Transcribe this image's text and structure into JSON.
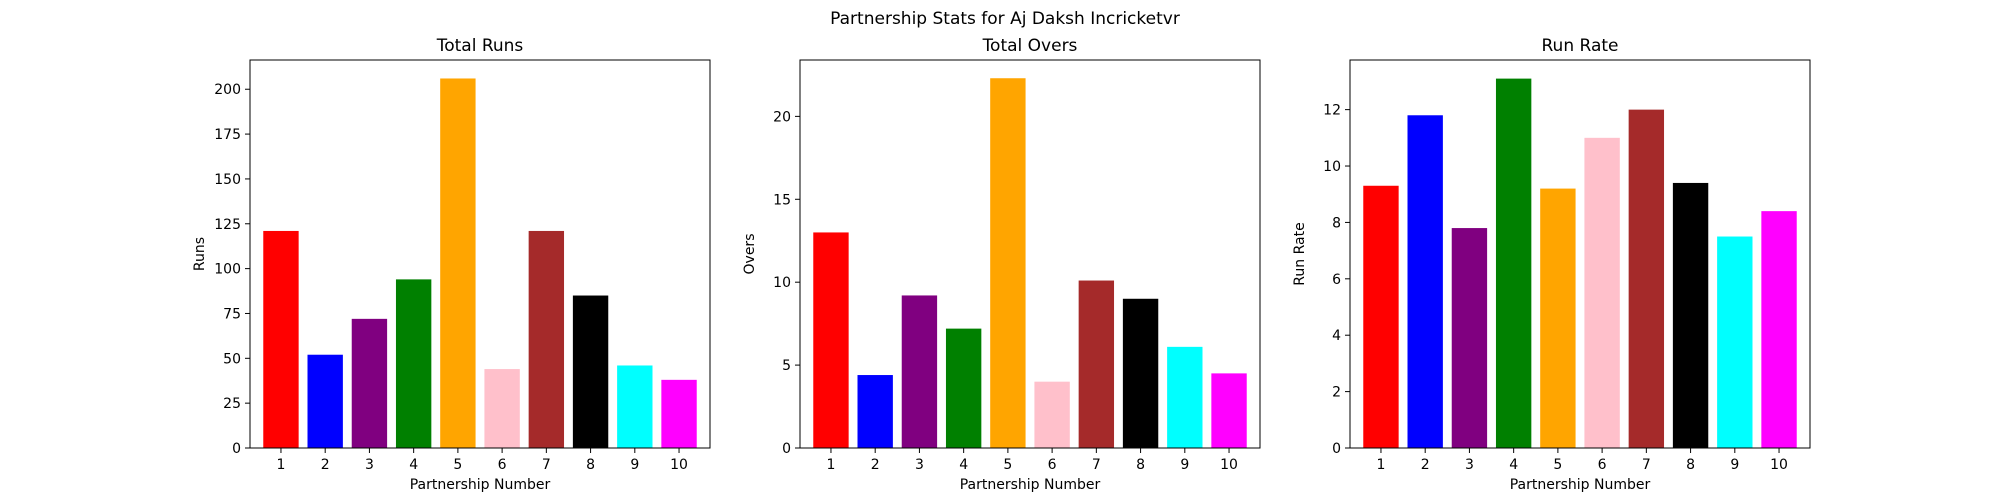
{
  "figure_title": "Partnership Stats for Aj Daksh Incricketvr",
  "chart_data": [
    {
      "type": "bar",
      "title": "Total Runs",
      "xlabel": "Partnership Number",
      "ylabel": "Runs",
      "categories": [
        "1",
        "2",
        "3",
        "4",
        "5",
        "6",
        "7",
        "8",
        "9",
        "10"
      ],
      "values": [
        121,
        52,
        72,
        94,
        206,
        44,
        121,
        85,
        46,
        38
      ],
      "colors": [
        "#ff0000",
        "#0000ff",
        "#800080",
        "#008000",
        "#ffa500",
        "#ffc0cb",
        "#a52a2a",
        "#000000",
        "#00ffff",
        "#ff00ff"
      ],
      "ylim": [
        0,
        216.3
      ],
      "yticks": [
        0,
        25,
        50,
        75,
        100,
        125,
        150,
        175,
        200
      ],
      "grid": false
    },
    {
      "type": "bar",
      "title": "Total Overs",
      "xlabel": "Partnership Number",
      "ylabel": "Overs",
      "categories": [
        "1",
        "2",
        "3",
        "4",
        "5",
        "6",
        "7",
        "8",
        "9",
        "10"
      ],
      "values": [
        13.0,
        4.4,
        9.2,
        7.2,
        22.3,
        4.0,
        10.1,
        9.0,
        6.1,
        4.5
      ],
      "colors": [
        "#ff0000",
        "#0000ff",
        "#800080",
        "#008000",
        "#ffa500",
        "#ffc0cb",
        "#a52a2a",
        "#000000",
        "#00ffff",
        "#ff00ff"
      ],
      "ylim": [
        0,
        23.4
      ],
      "yticks": [
        0,
        5,
        10,
        15,
        20
      ],
      "grid": false
    },
    {
      "type": "bar",
      "title": "Run Rate",
      "xlabel": "Partnership Number",
      "ylabel": "Run Rate",
      "categories": [
        "1",
        "2",
        "3",
        "4",
        "5",
        "6",
        "7",
        "8",
        "9",
        "10"
      ],
      "values": [
        9.3,
        11.8,
        7.8,
        13.1,
        9.2,
        11.0,
        12.0,
        9.4,
        7.5,
        8.4
      ],
      "colors": [
        "#ff0000",
        "#0000ff",
        "#800080",
        "#008000",
        "#ffa500",
        "#ffc0cb",
        "#a52a2a",
        "#000000",
        "#00ffff",
        "#ff00ff"
      ],
      "ylim": [
        0,
        13.76
      ],
      "yticks": [
        0,
        2,
        4,
        6,
        8,
        10,
        12
      ],
      "grid": false
    }
  ]
}
